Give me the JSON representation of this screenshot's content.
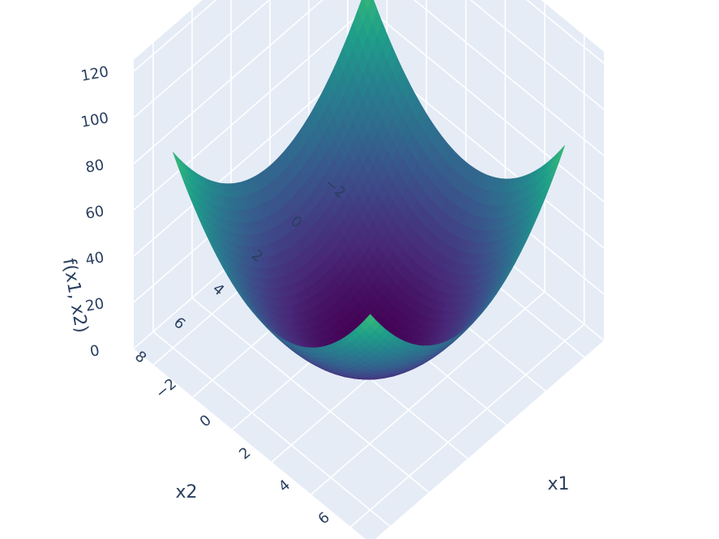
{
  "chart_data": {
    "type": "surface",
    "title": "",
    "colorscale": "Viridis",
    "colors": {
      "pane_bg": "#e5ecf6",
      "grid": "#ffffff",
      "text": "#2a3f5f"
    },
    "x": {
      "title": "x1",
      "range": [
        -3,
        9
      ],
      "ticks": [
        -2,
        0,
        2,
        4,
        6,
        8
      ],
      "tick_labels": [
        "−2",
        "0",
        "2",
        "4",
        "6",
        "8"
      ]
    },
    "y": {
      "title": "x2",
      "range": [
        -3,
        9
      ],
      "ticks": [
        -2,
        0,
        2,
        4,
        6,
        8
      ],
      "tick_labels": [
        "−2",
        "0",
        "2",
        "4",
        "6",
        "8"
      ]
    },
    "z": {
      "title": "f(x1, x2)",
      "range": [
        0,
        125
      ],
      "ticks": [
        0,
        20,
        40,
        60,
        80,
        100,
        120
      ],
      "tick_labels": [
        "0",
        "20",
        "40",
        "60",
        "80",
        "100",
        "120"
      ]
    },
    "surface": {
      "min_at": [
        3,
        3
      ],
      "min_value": 0,
      "corner_values": {
        "x_min_y_min": 72,
        "x_max_y_min": 122,
        "x_min_y_max": 122,
        "x_max_y_max": 72
      }
    }
  }
}
